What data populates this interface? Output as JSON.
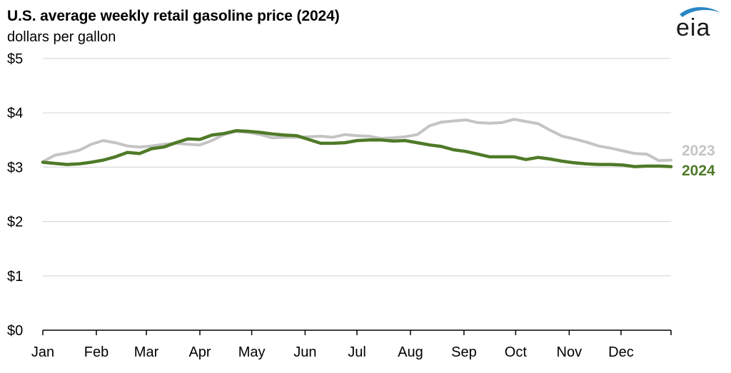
{
  "header": {
    "title": "U.S. average weekly retail gasoline price (2024)",
    "subtitle": "dollars per gallon",
    "logo_text": "eia"
  },
  "colors": {
    "series_2023": "#c4c4c4",
    "series_2024": "#4f7a28",
    "grid": "#d9d9d9",
    "logo_swoosh": "#2a87c6"
  },
  "chart_data": {
    "type": "line",
    "title": "U.S. average weekly retail gasoline price (2024)",
    "ylabel": "dollars per gallon",
    "xlabel": "",
    "ylim": [
      0,
      5
    ],
    "yticks": [
      0,
      1,
      2,
      3,
      4,
      5
    ],
    "ytick_labels": [
      "$0",
      "$1",
      "$2",
      "$3",
      "$4",
      "$5"
    ],
    "xlim": [
      0,
      52
    ],
    "xtick_positions": [
      0,
      4.43,
      8.57,
      13,
      17.29,
      21.71,
      26,
      30.43,
      34.86,
      39.14,
      43.57,
      47.86
    ],
    "xtick_labels": [
      "Jan",
      "Feb",
      "Mar",
      "Apr",
      "May",
      "Jun",
      "Jul",
      "Aug",
      "Sep",
      "Oct",
      "Nov",
      "Dec"
    ],
    "grid": true,
    "series": [
      {
        "name": "2023",
        "label": "2023",
        "values": [
          3.1,
          3.22,
          3.26,
          3.31,
          3.42,
          3.49,
          3.45,
          3.39,
          3.37,
          3.39,
          3.42,
          3.44,
          3.42,
          3.41,
          3.49,
          3.6,
          3.66,
          3.64,
          3.6,
          3.54,
          3.55,
          3.55,
          3.56,
          3.57,
          3.55,
          3.6,
          3.58,
          3.57,
          3.53,
          3.54,
          3.56,
          3.6,
          3.76,
          3.83,
          3.85,
          3.87,
          3.82,
          3.81,
          3.82,
          3.88,
          3.84,
          3.8,
          3.68,
          3.57,
          3.52,
          3.46,
          3.39,
          3.35,
          3.3,
          3.25,
          3.24,
          3.12,
          3.13
        ]
      },
      {
        "name": "2024",
        "label": "2024",
        "values": [
          3.09,
          3.07,
          3.05,
          3.06,
          3.09,
          3.13,
          3.19,
          3.27,
          3.25,
          3.34,
          3.37,
          3.45,
          3.52,
          3.51,
          3.59,
          3.62,
          3.67,
          3.66,
          3.64,
          3.61,
          3.59,
          3.58,
          3.51,
          3.44,
          3.44,
          3.45,
          3.49,
          3.5,
          3.5,
          3.48,
          3.49,
          3.45,
          3.41,
          3.38,
          3.32,
          3.29,
          3.24,
          3.19,
          3.19,
          3.19,
          3.14,
          3.18,
          3.15,
          3.11,
          3.08,
          3.06,
          3.05,
          3.05,
          3.04,
          3.01,
          3.02,
          3.02,
          3.01
        ]
      }
    ]
  }
}
